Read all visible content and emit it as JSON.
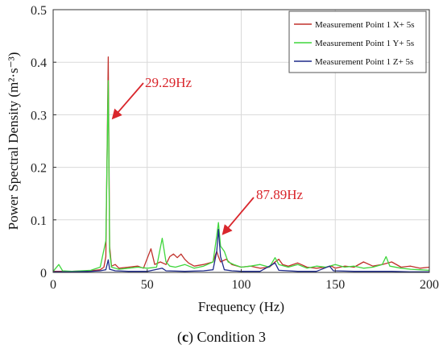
{
  "chart_data": {
    "type": "line",
    "title": "",
    "xlabel": "Frequency (Hz)",
    "ylabel": "Power Spectral Density (m²·s⁻³)",
    "xlim": [
      0,
      200
    ],
    "ylim": [
      0,
      0.5
    ],
    "xticks": [
      0,
      50,
      100,
      150,
      200
    ],
    "yticks": [
      0,
      0.1,
      0.2,
      0.3,
      0.4,
      0.5
    ],
    "grid": true,
    "legend_position": "top-right",
    "series": [
      {
        "name": "Measurement Point 1 X+ 5s",
        "color": "#c0302b",
        "points": [
          [
            0,
            0.002
          ],
          [
            10,
            0.002
          ],
          [
            20,
            0.003
          ],
          [
            25,
            0.005
          ],
          [
            27,
            0.01
          ],
          [
            28,
            0.03
          ],
          [
            29.29,
            0.41
          ],
          [
            30,
            0.05
          ],
          [
            31,
            0.012
          ],
          [
            33,
            0.015
          ],
          [
            35,
            0.008
          ],
          [
            40,
            0.01
          ],
          [
            45,
            0.012
          ],
          [
            48,
            0.008
          ],
          [
            52,
            0.045
          ],
          [
            54,
            0.015
          ],
          [
            57,
            0.02
          ],
          [
            60,
            0.015
          ],
          [
            62,
            0.03
          ],
          [
            64,
            0.035
          ],
          [
            66,
            0.028
          ],
          [
            68,
            0.035
          ],
          [
            70,
            0.025
          ],
          [
            72,
            0.018
          ],
          [
            75,
            0.012
          ],
          [
            80,
            0.015
          ],
          [
            85,
            0.02
          ],
          [
            87,
            0.04
          ],
          [
            87.89,
            0.03
          ],
          [
            89,
            0.02
          ],
          [
            92,
            0.025
          ],
          [
            95,
            0.015
          ],
          [
            100,
            0.01
          ],
          [
            105,
            0.012
          ],
          [
            110,
            0.008
          ],
          [
            115,
            0.01
          ],
          [
            118,
            0.02
          ],
          [
            120,
            0.025
          ],
          [
            122,
            0.015
          ],
          [
            125,
            0.012
          ],
          [
            130,
            0.018
          ],
          [
            135,
            0.01
          ],
          [
            140,
            0.008
          ],
          [
            145,
            0.01
          ],
          [
            148,
            0.012
          ],
          [
            150,
            0.008
          ],
          [
            155,
            0.012
          ],
          [
            160,
            0.01
          ],
          [
            165,
            0.02
          ],
          [
            170,
            0.012
          ],
          [
            175,
            0.015
          ],
          [
            180,
            0.02
          ],
          [
            185,
            0.01
          ],
          [
            190,
            0.012
          ],
          [
            195,
            0.008
          ],
          [
            200,
            0.01
          ]
        ]
      },
      {
        "name": "Measurement Point 1 Y+ 5s",
        "color": "#3fd63c",
        "points": [
          [
            0,
            0.002
          ],
          [
            3,
            0.015
          ],
          [
            5,
            0.003
          ],
          [
            10,
            0.002
          ],
          [
            20,
            0.004
          ],
          [
            25,
            0.01
          ],
          [
            28,
            0.06
          ],
          [
            29.29,
            0.365
          ],
          [
            30,
            0.04
          ],
          [
            31,
            0.01
          ],
          [
            35,
            0.006
          ],
          [
            40,
            0.008
          ],
          [
            45,
            0.01
          ],
          [
            50,
            0.008
          ],
          [
            55,
            0.01
          ],
          [
            58,
            0.065
          ],
          [
            60,
            0.02
          ],
          [
            62,
            0.012
          ],
          [
            65,
            0.01
          ],
          [
            70,
            0.015
          ],
          [
            75,
            0.008
          ],
          [
            80,
            0.012
          ],
          [
            85,
            0.02
          ],
          [
            87,
            0.07
          ],
          [
            87.89,
            0.095
          ],
          [
            89,
            0.05
          ],
          [
            91,
            0.04
          ],
          [
            93,
            0.02
          ],
          [
            96,
            0.015
          ],
          [
            100,
            0.01
          ],
          [
            105,
            0.012
          ],
          [
            110,
            0.015
          ],
          [
            115,
            0.01
          ],
          [
            118,
            0.028
          ],
          [
            120,
            0.015
          ],
          [
            125,
            0.01
          ],
          [
            130,
            0.015
          ],
          [
            135,
            0.008
          ],
          [
            140,
            0.012
          ],
          [
            145,
            0.01
          ],
          [
            150,
            0.015
          ],
          [
            155,
            0.01
          ],
          [
            160,
            0.012
          ],
          [
            165,
            0.008
          ],
          [
            170,
            0.01
          ],
          [
            175,
            0.015
          ],
          [
            177,
            0.03
          ],
          [
            179,
            0.012
          ],
          [
            185,
            0.008
          ],
          [
            190,
            0.006
          ],
          [
            195,
            0.005
          ],
          [
            200,
            0.004
          ]
        ]
      },
      {
        "name": "Measurement Point 1 Z+ 5s",
        "color": "#1e2a8a",
        "points": [
          [
            0,
            0.001
          ],
          [
            10,
            0.001
          ],
          [
            20,
            0.002
          ],
          [
            25,
            0.003
          ],
          [
            28,
            0.005
          ],
          [
            29.29,
            0.024
          ],
          [
            30,
            0.006
          ],
          [
            33,
            0.003
          ],
          [
            40,
            0.002
          ],
          [
            50,
            0.002
          ],
          [
            58,
            0.008
          ],
          [
            60,
            0.003
          ],
          [
            70,
            0.002
          ],
          [
            80,
            0.003
          ],
          [
            85,
            0.005
          ],
          [
            87,
            0.04
          ],
          [
            87.89,
            0.082
          ],
          [
            89,
            0.03
          ],
          [
            91,
            0.005
          ],
          [
            95,
            0.003
          ],
          [
            100,
            0.002
          ],
          [
            110,
            0.002
          ],
          [
            118,
            0.018
          ],
          [
            120,
            0.004
          ],
          [
            130,
            0.002
          ],
          [
            140,
            0.002
          ],
          [
            147,
            0.012
          ],
          [
            149,
            0.003
          ],
          [
            160,
            0.002
          ],
          [
            170,
            0.002
          ],
          [
            180,
            0.002
          ],
          [
            190,
            0.001
          ],
          [
            200,
            0.001
          ]
        ]
      }
    ],
    "annotations": [
      {
        "text": "29.29Hz",
        "x": 29.29,
        "y": 0.3,
        "color": "#d9262c"
      },
      {
        "text": "87.89Hz",
        "x": 87.89,
        "y": 0.08,
        "color": "#d9262c"
      }
    ]
  },
  "caption": {
    "label": "c",
    "text": " Condition 3"
  }
}
